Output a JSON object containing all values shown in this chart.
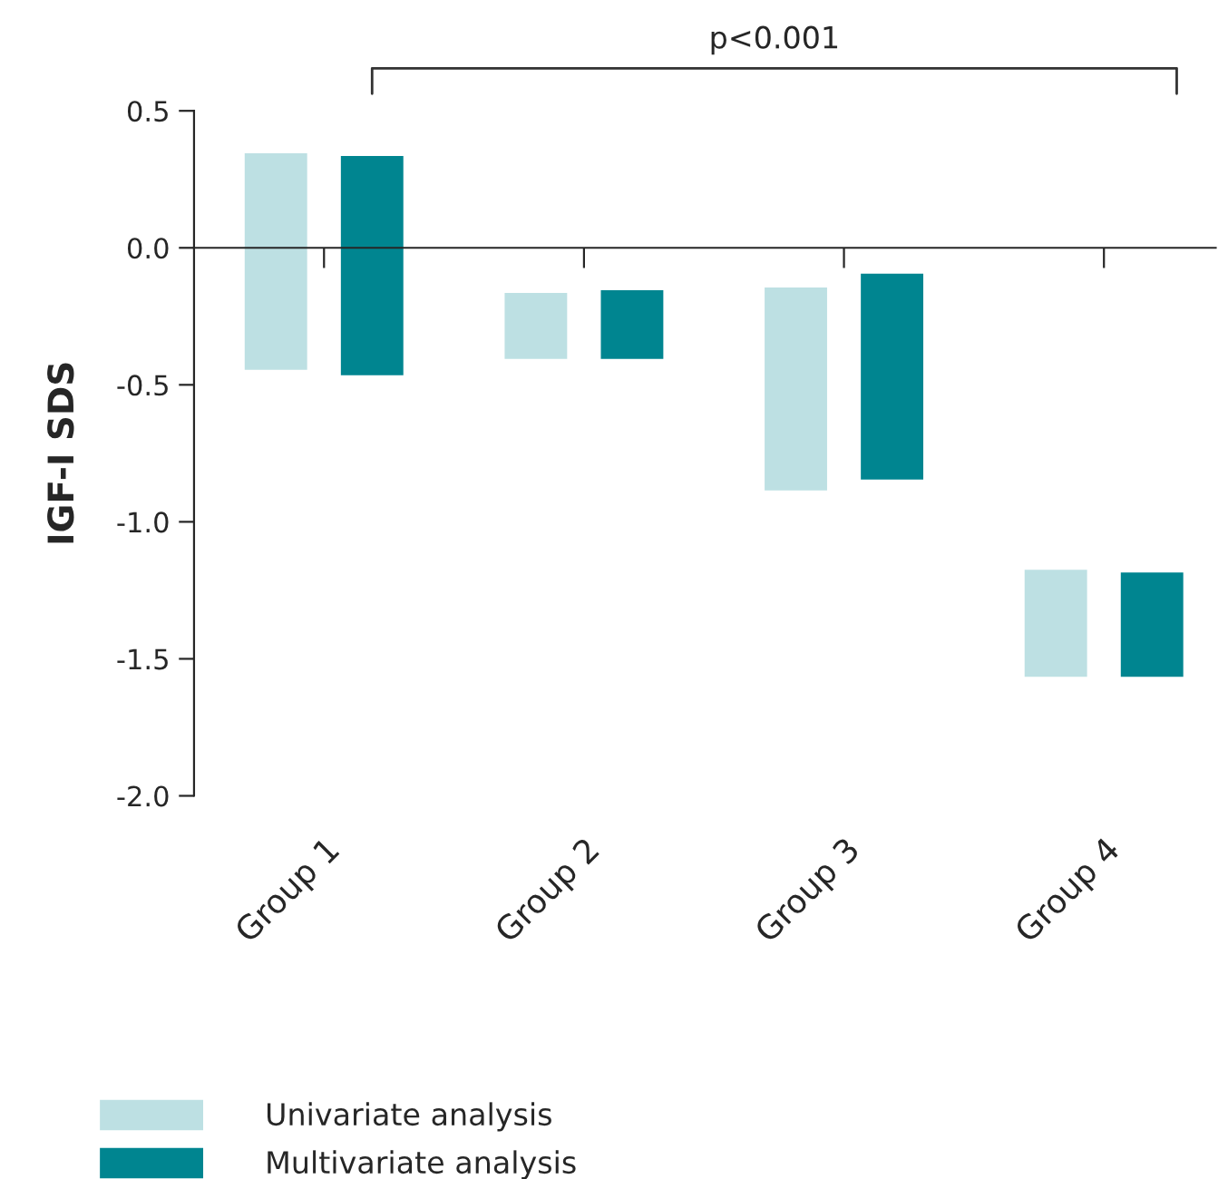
{
  "chart_data": {
    "type": "bar",
    "ylabel": "IGF-I SDS",
    "categories": [
      "Group 1",
      "Group 2",
      "Group 3",
      "Group 4"
    ],
    "series": [
      {
        "name": "Univariate analysis",
        "color": "#bde0e3",
        "base": [
          -0.45,
          -0.41,
          -0.89,
          -1.57
        ],
        "values": [
          0.8,
          0.25,
          0.75,
          0.4
        ]
      },
      {
        "name": "Multivariate analysis",
        "color": "#008590",
        "base": [
          -0.47,
          -0.41,
          -0.85,
          -1.57
        ],
        "values": [
          0.81,
          0.26,
          0.76,
          0.39
        ]
      }
    ],
    "ylim": [
      -2.0,
      0.5
    ],
    "yticks": [
      {
        "value": -2.0,
        "label": "-2.0"
      },
      {
        "value": -1.5,
        "label": "-1.5"
      },
      {
        "value": -1.0,
        "label": "-1.0"
      },
      {
        "value": -0.5,
        "label": "-0.5"
      },
      {
        "value": 0.0,
        "label": "0.0"
      },
      0.5
    ],
    "annotations": [
      "p<0.001"
    ],
    "legend": "bottom left"
  }
}
